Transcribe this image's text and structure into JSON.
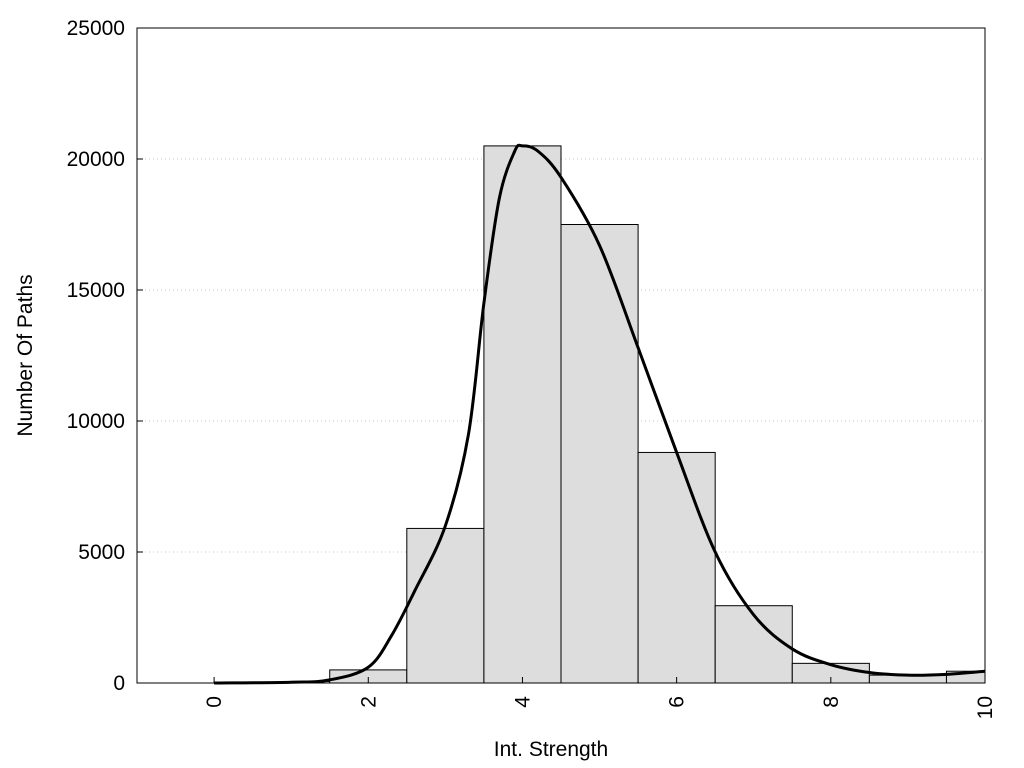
{
  "chart_data": {
    "type": "bar",
    "title": "",
    "xlabel": "Int. Strength",
    "ylabel": "Number Of Paths",
    "xlim": [
      -1,
      10
    ],
    "ylim": [
      0,
      25000
    ],
    "x_ticks": [
      0,
      2,
      4,
      6,
      8,
      10
    ],
    "y_ticks": [
      0,
      5000,
      10000,
      15000,
      20000,
      25000
    ],
    "grid": "horizontal dotted",
    "legend": "none",
    "bins": [
      {
        "x0": 0,
        "x1": 1,
        "value": 30
      },
      {
        "x0": 1,
        "x1": 1.5,
        "value": 60
      },
      {
        "x0": 1.5,
        "x1": 2.5,
        "value": 500
      },
      {
        "x0": 2.5,
        "x1": 3.5,
        "value": 5900
      },
      {
        "x0": 3.5,
        "x1": 4.5,
        "value": 20500
      },
      {
        "x0": 4.5,
        "x1": 5.5,
        "value": 17500
      },
      {
        "x0": 5.5,
        "x1": 6.5,
        "value": 8800
      },
      {
        "x0": 6.5,
        "x1": 7.5,
        "value": 2950
      },
      {
        "x0": 7.5,
        "x1": 8.5,
        "value": 750
      },
      {
        "x0": 8.5,
        "x1": 9.5,
        "value": 300
      },
      {
        "x0": 9.5,
        "x1": 10,
        "value": 450
      }
    ],
    "density_curve": {
      "x": [
        0,
        1,
        1.5,
        2,
        2.3,
        2.6,
        3,
        3.3,
        3.5,
        3.7,
        3.9,
        4.0,
        4.2,
        4.5,
        5,
        5.5,
        6,
        6.5,
        7,
        7.5,
        8,
        8.5,
        9,
        9.5,
        10
      ],
      "y": [
        0,
        30,
        120,
        600,
        1800,
        3500,
        6000,
        9500,
        14500,
        18500,
        20300,
        20500,
        20300,
        19300,
        16700,
        12800,
        8800,
        5000,
        2600,
        1300,
        700,
        400,
        300,
        330,
        450
      ]
    },
    "colors": {
      "bar_fill": "#dddddd",
      "bar_stroke": "#000000",
      "curve": "#000000",
      "grid": "#c8c8c8"
    }
  }
}
